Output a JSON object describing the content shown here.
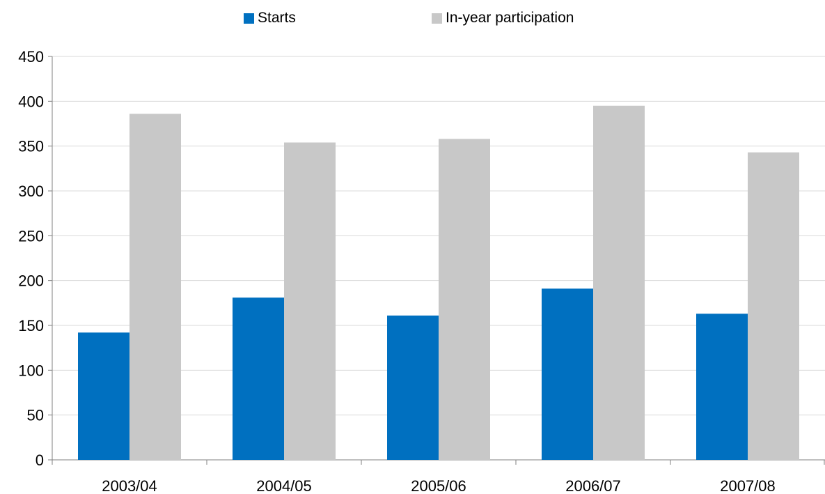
{
  "chart_data": {
    "type": "bar",
    "title": "",
    "xlabel": "",
    "ylabel": "",
    "categories": [
      "2003/04",
      "2004/05",
      "2005/06",
      "2006/07",
      "2007/08"
    ],
    "series": [
      {
        "name": "Starts",
        "color": "#0070c0",
        "values": [
          142,
          181,
          161,
          191,
          163
        ]
      },
      {
        "name": "In-year participation",
        "color": "#c8c8c8",
        "values": [
          386,
          354,
          358,
          395,
          343
        ]
      }
    ],
    "ylim": [
      0,
      450
    ],
    "yticks": [
      "0",
      "50",
      "100",
      "150",
      "200",
      "250",
      "300",
      "350",
      "400",
      "450"
    ],
    "grid": true,
    "legend_position": "top-center"
  }
}
